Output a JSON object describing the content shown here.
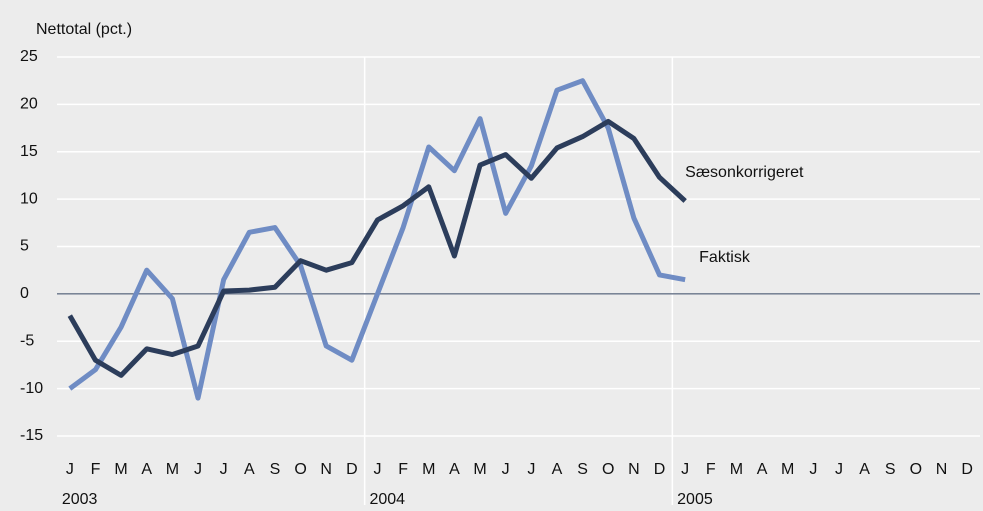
{
  "chart_data": {
    "type": "line",
    "y_label": "Nettotal (pct.)",
    "categories": [
      "J",
      "F",
      "M",
      "A",
      "M",
      "J",
      "J",
      "A",
      "S",
      "O",
      "N",
      "D",
      "J",
      "F",
      "M",
      "A",
      "M",
      "J",
      "J",
      "A",
      "S",
      "O",
      "N",
      "D",
      "J",
      "F",
      "M",
      "A",
      "M",
      "J",
      "J",
      "A",
      "S",
      "O",
      "N",
      "D"
    ],
    "years": [
      "2003",
      "2004",
      "2005"
    ],
    "series": [
      {
        "name": "Faktisk",
        "color": "#6f8cc4",
        "values": [
          -10,
          -8,
          -3.5,
          2.5,
          -0.5,
          -11,
          1.5,
          6.5,
          7,
          3,
          -5.5,
          -7,
          0,
          7,
          15.5,
          13,
          18.5,
          8.5,
          13.5,
          21.5,
          22.5,
          17.5,
          8,
          2,
          1.5,
          null,
          null,
          null,
          null,
          null,
          null,
          null,
          null,
          null,
          null,
          null
        ]
      },
      {
        "name": "Sæsonkorrigeret",
        "color": "#2c3d5b",
        "values": [
          -2.3,
          -7,
          -8.6,
          -5.8,
          -6.4,
          -5.5,
          0.3,
          0.4,
          0.7,
          3.5,
          2.5,
          3.3,
          7.8,
          9.3,
          11.3,
          4,
          13.6,
          14.7,
          12.2,
          15.4,
          16.6,
          18.2,
          16.4,
          12.3,
          9.8,
          null,
          null,
          null,
          null,
          null,
          null,
          null,
          null,
          null,
          null,
          null
        ]
      }
    ],
    "ylim": [
      -15,
      25
    ],
    "yticks": [
      -15,
      -10,
      -5,
      0,
      5,
      10,
      15,
      20,
      25
    ],
    "grid": true
  }
}
